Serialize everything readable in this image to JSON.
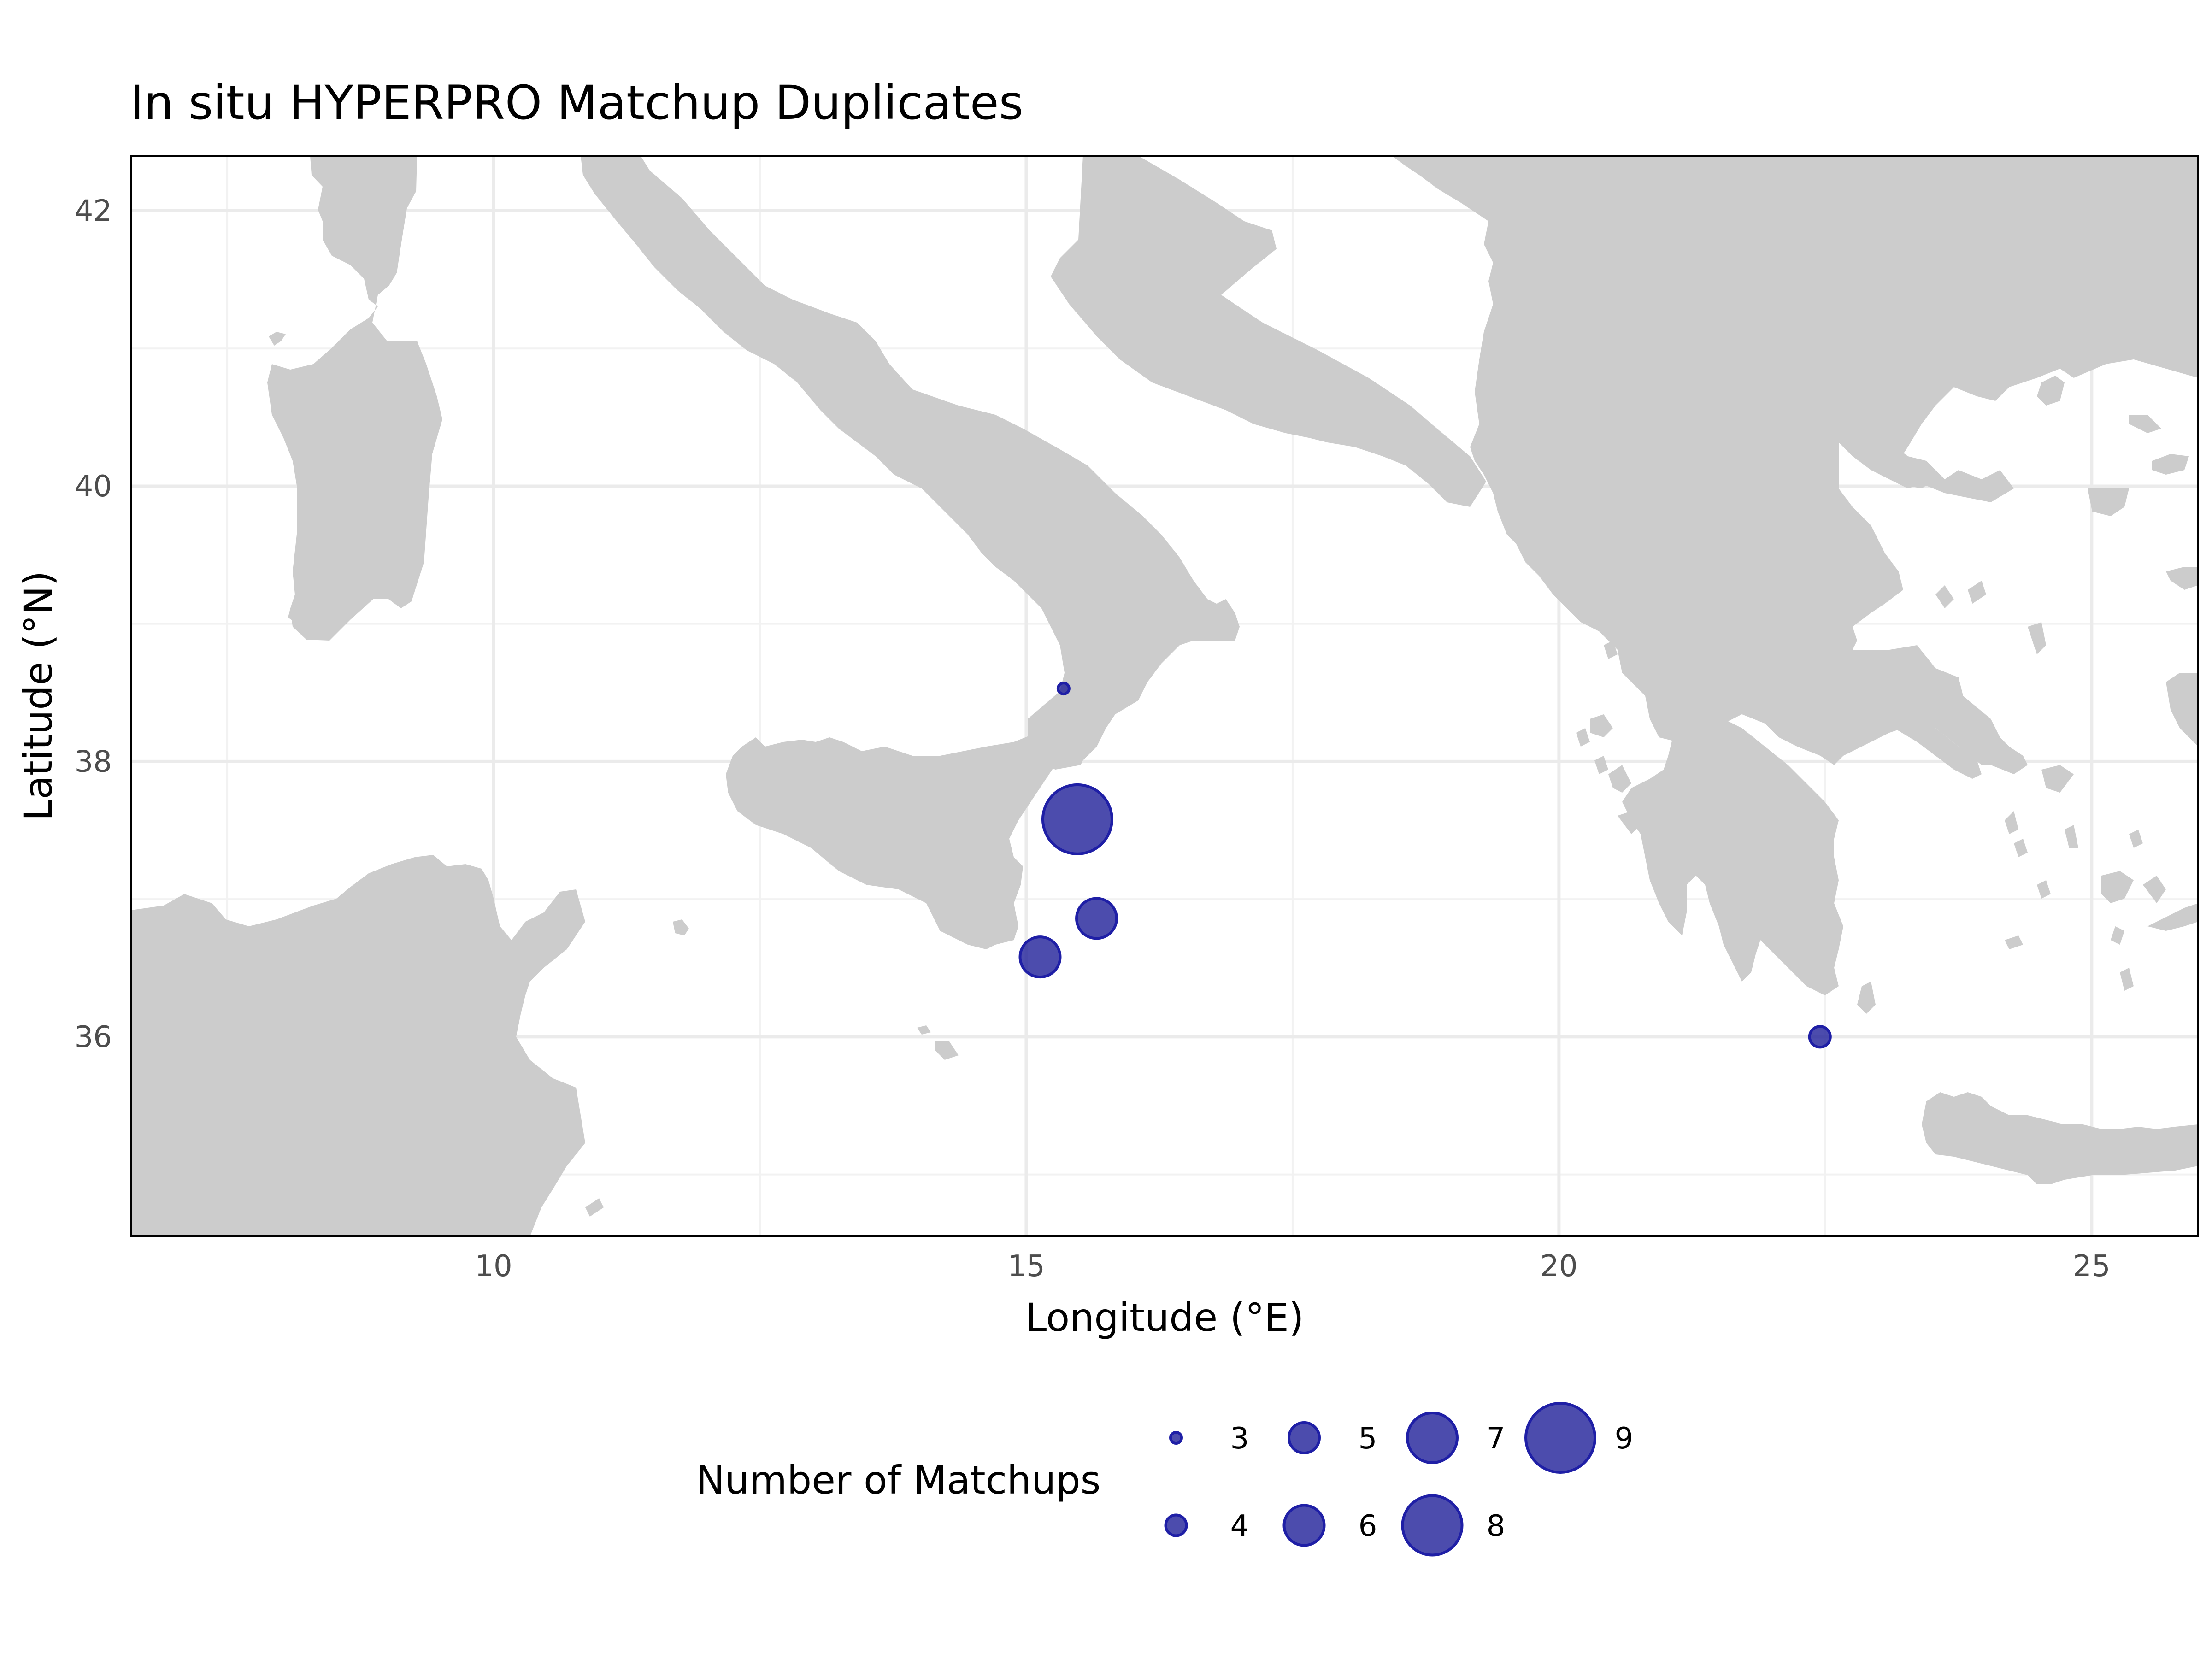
{
  "chart_data": {
    "type": "scatter",
    "title": "In situ HYPERPRO Matchup Duplicates",
    "xlabel": "Longitude (°E)",
    "ylabel": "Latitude (°N)",
    "xlim": [
      6.6,
      26.0
    ],
    "ylim": [
      34.55,
      42.4
    ],
    "x_ticks": [
      10,
      15,
      20,
      25
    ],
    "y_ticks": [
      36,
      38,
      40,
      42
    ],
    "x_tick_labels": [
      "10",
      "15",
      "20",
      "25"
    ],
    "y_tick_labels": [
      "36",
      "38",
      "40",
      "42"
    ],
    "grid": true,
    "land_color": "#cccccc",
    "point_color": "#1f1f99",
    "size_legend": {
      "title": "Number of Matchups",
      "position": "bottom",
      "values": [
        3,
        4,
        5,
        6,
        7,
        8,
        9
      ],
      "labels": [
        "3",
        "4",
        "5",
        "6",
        "7",
        "8",
        "9"
      ]
    },
    "points": [
      {
        "lon": 15.35,
        "lat": 38.53,
        "n": 3
      },
      {
        "lon": 15.48,
        "lat": 37.58,
        "n": 9
      },
      {
        "lon": 15.66,
        "lat": 36.86,
        "n": 6
      },
      {
        "lon": 15.13,
        "lat": 36.58,
        "n": 6
      },
      {
        "lon": 22.45,
        "lat": 36.0,
        "n": 4
      }
    ]
  }
}
